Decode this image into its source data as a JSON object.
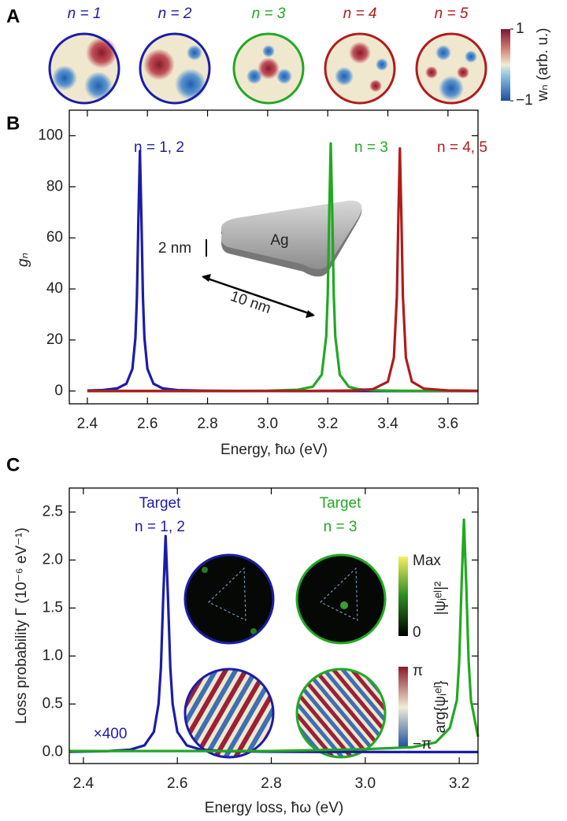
{
  "chart_data": [
    {
      "type": "maps",
      "panel": "A",
      "maps": [
        {
          "label": "n = 1",
          "color": "#1c1ca8"
        },
        {
          "label": "n = 2",
          "color": "#1c1ca8"
        },
        {
          "label": "n = 3",
          "color": "#22a822"
        },
        {
          "label": "n = 4",
          "color": "#b01c1c"
        },
        {
          "label": "n = 5",
          "color": "#b01c1c"
        }
      ],
      "colorbar": {
        "label": "wₙ (arb. u.)",
        "ticks": [
          1,
          {
            "value": -1,
            "label": "−1"
          }
        ]
      }
    },
    {
      "type": "line",
      "panel": "B",
      "ylabel": "gₙ",
      "xlabel": "Energy, ħω (eV)",
      "xlim": [
        2.34,
        3.7
      ],
      "ylim": [
        -5,
        110
      ],
      "xticks": [
        2.4,
        2.6,
        2.8,
        {
          "value": 3,
          "label": "3.0"
        },
        3.2,
        3.4,
        3.6
      ],
      "yticks": [
        0,
        20,
        40,
        60,
        80,
        100
      ],
      "x": [
        2.4,
        2.45,
        2.5,
        2.53,
        2.55,
        2.56,
        2.565,
        2.57,
        2.575,
        2.58,
        2.585,
        2.59,
        2.6,
        2.62,
        2.65,
        2.7,
        2.8,
        2.9,
        3.0,
        3.1,
        3.15,
        3.18,
        3.195,
        3.2,
        3.205,
        3.21,
        3.215,
        3.22,
        3.225,
        3.24,
        3.27,
        3.3,
        3.35,
        3.4,
        3.42,
        3.43,
        3.435,
        3.44,
        3.445,
        3.45,
        3.46,
        3.48,
        3.52,
        3.6,
        3.7
      ],
      "series": [
        {
          "name": "n = 1, 2",
          "color": "#1c1ca8",
          "values": [
            0.2,
            0.38,
            1.06,
            2.88,
            8.7,
            20.8,
            36.7,
            67.6,
            94,
            67.6,
            36.7,
            20.8,
            8.7,
            2.88,
            1.06,
            0.38,
            0.12,
            0.06,
            0.03,
            0.02,
            0.01,
            0.01,
            0.01,
            0.01,
            0.01,
            0.01,
            0.01,
            0.01,
            0.01,
            0.01,
            0.01,
            0.01,
            0.01,
            0.01,
            0.01,
            0.01,
            0.01,
            0.01,
            0.01,
            0.01,
            0.01,
            0.01,
            0.01,
            0.01,
            0.01
          ]
        },
        {
          "name": "n = 3",
          "color": "#22a822",
          "values": [
            0.02,
            0.02,
            0.02,
            0.02,
            0.02,
            0.02,
            0.02,
            0.02,
            0.02,
            0.02,
            0.02,
            0.02,
            0.02,
            0.02,
            0.02,
            0.02,
            0.04,
            0.07,
            0.14,
            0.51,
            1.69,
            6.4,
            21.5,
            37.9,
            69.8,
            97,
            69.8,
            37.9,
            21.5,
            6.4,
            1.69,
            0.76,
            0.32,
            0.17,
            0.14,
            0.13,
            0.12,
            0.12,
            0.11,
            0.11,
            0.1,
            0.09,
            0.07,
            0.04,
            0.03
          ]
        },
        {
          "name": "n = 4, 5",
          "color": "#b01c1c",
          "values": [
            0.01,
            0.01,
            0.01,
            0.01,
            0.01,
            0.01,
            0.01,
            0.01,
            0.01,
            0.01,
            0.01,
            0.01,
            0.01,
            0.01,
            0.01,
            0.01,
            0.01,
            0.01,
            0.03,
            0.05,
            0.07,
            0.1,
            0.1,
            0.11,
            0.11,
            0.11,
            0.12,
            0.12,
            0.13,
            0.15,
            0.21,
            0.31,
            0.74,
            3.66,
            13.1,
            37.1,
            68.3,
            95,
            68.3,
            37.1,
            13.1,
            3.66,
            0.94,
            0.24,
            0.09
          ]
        }
      ],
      "inset": {
        "material": "Ag",
        "thickness": "2 nm",
        "edge": "10 nm"
      }
    },
    {
      "type": "line",
      "panel": "C",
      "ylabel": "Loss probability Γ (10⁻⁶ eV⁻¹)",
      "xlabel": "Energy loss, ħω (eV)",
      "xlim": [
        2.37,
        3.24
      ],
      "ylim": [
        -0.12,
        2.75
      ],
      "xticks": [
        2.4,
        2.6,
        2.8,
        {
          "value": 3,
          "label": "3.0"
        },
        3.2
      ],
      "yticks": [
        {
          "value": 0,
          "label": "0.0"
        },
        0.5,
        {
          "value": 1,
          "label": "1.0"
        },
        1.5,
        {
          "value": 2,
          "label": "2.0"
        },
        2.5
      ],
      "x": [
        2.37,
        2.4,
        2.45,
        2.5,
        2.53,
        2.55,
        2.56,
        2.565,
        2.57,
        2.575,
        2.58,
        2.585,
        2.59,
        2.6,
        2.62,
        2.65,
        2.7,
        2.8,
        2.9,
        3.0,
        3.1,
        3.15,
        3.18,
        3.195,
        3.2,
        3.205,
        3.21,
        3.215,
        3.22,
        3.225,
        3.24
      ],
      "series": [
        {
          "name": "n = 1, 2",
          "color": "#1c1ca8",
          "values": [
            0.003,
            0.005,
            0.009,
            0.025,
            0.069,
            0.21,
            0.5,
            0.88,
            1.62,
            2.25,
            1.62,
            0.88,
            0.5,
            0.21,
            0.069,
            0.025,
            0.009,
            0.003,
            0.001,
            0.001,
            0,
            0,
            0,
            0,
            0,
            0,
            0,
            0,
            0,
            0,
            0
          ]
        },
        {
          "name": "n = 3",
          "color": "#22a822",
          "values": [
            0.01,
            0.01,
            0.01,
            0.01,
            0.01,
            0.01,
            0.01,
            0.01,
            0.01,
            0.01,
            0.01,
            0.01,
            0.01,
            0.01,
            0.01,
            0.01,
            0.01,
            0.01,
            0.02,
            0.03,
            0.05,
            0.1,
            0.25,
            0.54,
            0.95,
            1.74,
            2.42,
            1.74,
            0.95,
            0.54,
            0.16
          ]
        }
      ],
      "annotation": "×400",
      "insets": [
        {
          "title": "Target",
          "label": "n = 1, 2",
          "color": "#1c1ca8"
        },
        {
          "title": "Target",
          "label": "n = 3",
          "color": "#22a822"
        }
      ],
      "colorbars": [
        {
          "label": "|ψᵢᵉˡ|²",
          "top": "Max",
          "bottom": "0"
        },
        {
          "label": "arg{ψᵢᵉˡ}",
          "top": "π",
          "bottom": "−π"
        }
      ]
    }
  ]
}
